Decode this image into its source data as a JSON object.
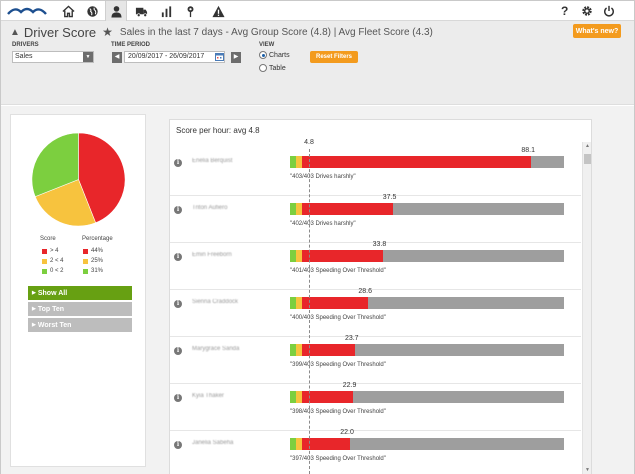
{
  "nav": {
    "icons": [
      "home-icon",
      "globe-icon",
      "user-icon",
      "truck-icon",
      "bar-chart-icon",
      "map-pin-icon",
      "warning-icon"
    ],
    "active_index": 2,
    "help": "?",
    "settings_icon": "gear-icon",
    "power_icon": "power-icon"
  },
  "header": {
    "title": "Driver Score",
    "subtitle": "Sales in the last 7 days - Avg Group Score (4.8) | Avg Fleet Score (4.3)",
    "whats_new": "What's new?",
    "drivers_label": "DRIVERS",
    "drivers_value": "Sales",
    "time_period_label": "TIME PERIOD",
    "date_range": "20/09/2017 - 26/09/2017",
    "view_label": "VIEW",
    "view_options": [
      "Charts",
      "Table"
    ],
    "view_selected": "Charts",
    "reset_filters": "Reset Filters"
  },
  "summary": {
    "legend_headers": [
      "Score",
      "Percentage"
    ],
    "legend": [
      {
        "range": "> 4",
        "percent": "44%",
        "color": "#e8262a"
      },
      {
        "range": "2 < 4",
        "percent": "25%",
        "color": "#f7c33e"
      },
      {
        "range": "0 < 2",
        "percent": "31%",
        "color": "#7ccf3f"
      }
    ],
    "buttons": [
      "Show All",
      "Top Ten",
      "Worst Ten"
    ],
    "active_button": "Show All"
  },
  "chart": {
    "title": "Score per hour: avg 4.8",
    "avg_value": "4.8"
  },
  "chart_data": {
    "type": "bar",
    "title": "Score per hour: avg 4.8",
    "avg_line": 4.8,
    "xlim": [
      0,
      100
    ],
    "pie": {
      "type": "pie",
      "categories": [
        "> 4",
        "2 < 4",
        "0 < 2"
      ],
      "values": [
        44,
        25,
        31
      ],
      "colors": [
        "#e8262a",
        "#f7c33e",
        "#7ccf3f"
      ]
    },
    "rows": [
      {
        "name": "Enelia Berquist",
        "value": 88.1,
        "value_label": "88.1",
        "reason": "\"403/403 Drives harshly\""
      },
      {
        "name": "Triton Aufiero",
        "value": 37.5,
        "value_label": "37.5",
        "reason": "\"402/403 Drives harshly\""
      },
      {
        "name": "Emin Freeborn",
        "value": 33.8,
        "value_label": "33.8",
        "reason": "\"401/403 Speeding Over Threshold\""
      },
      {
        "name": "Sienna Craddock",
        "value": 28.6,
        "value_label": "28.6",
        "reason": "\"400/403 Speeding Over Threshold\""
      },
      {
        "name": "Marygrace Sanda",
        "value": 23.7,
        "value_label": "23.7",
        "reason": "\"399/403 Speeding Over Threshold\""
      },
      {
        "name": "Kyia Thaker",
        "value": 22.9,
        "value_label": "22.9",
        "reason": "\"398/403 Speeding Over Threshold\""
      },
      {
        "name": "Janelia Sabeha",
        "value": 22.0,
        "value_label": "22.0",
        "reason": "\"397/403 Speeding Over Threshold\""
      }
    ]
  }
}
